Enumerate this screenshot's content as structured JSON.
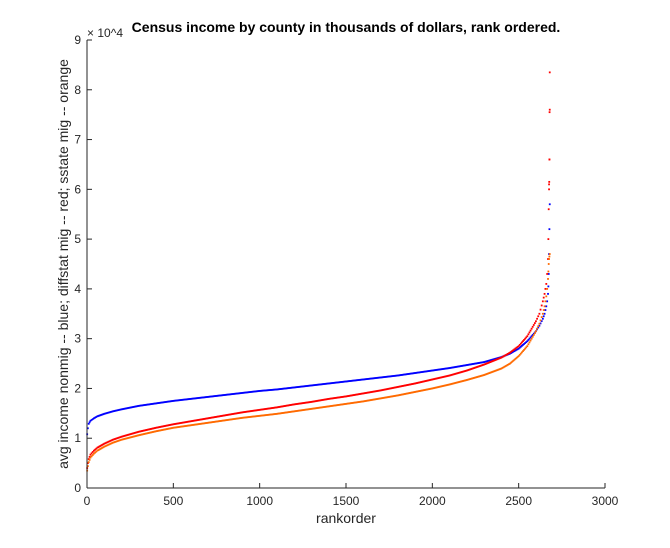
{
  "chart_data": {
    "type": "scatter",
    "title": "Census income by county in thousands of dollars, rank ordered.",
    "xlabel": "rankorder",
    "ylabel": "avg income nonmig -- blue; diffstat mig -- red; sstate mig -- orange",
    "xlim": [
      0,
      3000
    ],
    "ylim": [
      0,
      90000
    ],
    "y_exponent_label": "× 10^4",
    "x_ticks": [
      0,
      500,
      1000,
      1500,
      2000,
      2500,
      3000
    ],
    "x_tick_labels": [
      "0",
      "500",
      "1000",
      "1500",
      "2000",
      "2500",
      "3000"
    ],
    "y_ticks": [
      0,
      10000,
      20000,
      30000,
      40000,
      50000,
      60000,
      70000,
      80000,
      90000
    ],
    "y_tick_labels": [
      "0",
      "1",
      "2",
      "3",
      "4",
      "5",
      "6",
      "7",
      "8",
      "9"
    ],
    "grid": false,
    "series": [
      {
        "color": "#0000ff",
        "x": [
          1,
          5,
          10,
          20,
          40,
          60,
          100,
          150,
          200,
          300,
          400,
          500,
          600,
          700,
          800,
          900,
          1000,
          1100,
          1200,
          1300,
          1400,
          1500,
          1600,
          1700,
          1800,
          1900,
          2000,
          2100,
          2200,
          2300,
          2400,
          2450,
          2500,
          2550,
          2600,
          2620,
          2640,
          2650,
          2660,
          2665,
          2670,
          2672,
          2674,
          2676,
          2678,
          2680
        ],
        "y": [
          10800,
          12000,
          12900,
          13500,
          14000,
          14400,
          14900,
          15400,
          15800,
          16500,
          17000,
          17500,
          17900,
          18300,
          18700,
          19100,
          19500,
          19800,
          20200,
          20600,
          21000,
          21400,
          21800,
          22200,
          22600,
          23100,
          23600,
          24100,
          24700,
          25300,
          26300,
          27000,
          28000,
          29500,
          31500,
          32600,
          34000,
          35000,
          36500,
          37500,
          39000,
          40500,
          43000,
          47000,
          52000,
          57000
        ]
      },
      {
        "color": "#ff0000",
        "x": [
          1,
          5,
          10,
          20,
          40,
          60,
          100,
          150,
          200,
          300,
          400,
          500,
          600,
          700,
          800,
          900,
          1000,
          1100,
          1200,
          1300,
          1400,
          1500,
          1600,
          1700,
          1800,
          1900,
          2000,
          2100,
          2200,
          2300,
          2400,
          2450,
          2500,
          2550,
          2600,
          2620,
          2640,
          2650,
          2660,
          2665,
          2670,
          2672,
          2674,
          2676,
          2678,
          2680
        ],
        "y": [
          4000,
          5000,
          5800,
          6700,
          7500,
          8100,
          8900,
          9700,
          10300,
          11300,
          12100,
          12800,
          13400,
          14000,
          14600,
          15200,
          15700,
          16200,
          16800,
          17300,
          17900,
          18400,
          19000,
          19600,
          20300,
          21000,
          21800,
          22600,
          23600,
          24800,
          26200,
          27200,
          28500,
          30500,
          33500,
          35000,
          37500,
          39000,
          41000,
          43000,
          46000,
          50000,
          56000,
          61000,
          66000,
          76000
        ]
      },
      {
        "color": "#ff6a00",
        "x": [
          1,
          5,
          10,
          20,
          40,
          60,
          100,
          150,
          200,
          300,
          400,
          500,
          600,
          700,
          800,
          900,
          1000,
          1100,
          1200,
          1300,
          1400,
          1500,
          1600,
          1700,
          1800,
          1900,
          2000,
          2100,
          2200,
          2300,
          2400,
          2450,
          2500,
          2550,
          2600,
          2620,
          2640,
          2650,
          2660,
          2665,
          2670,
          2672,
          2674,
          2676,
          2678,
          2680
        ],
        "y": [
          3500,
          4400,
          5200,
          6100,
          6900,
          7500,
          8300,
          9100,
          9700,
          10600,
          11400,
          12100,
          12600,
          13100,
          13600,
          14100,
          14500,
          14900,
          15400,
          15900,
          16400,
          16900,
          17400,
          18000,
          18600,
          19300,
          20000,
          20800,
          21700,
          22700,
          24000,
          25000,
          26500,
          28500,
          31500,
          33000,
          35000,
          36500,
          38500,
          40000,
          42000,
          43500,
          45000,
          46000,
          46500,
          47000
        ]
      },
      {
        "color": "#ff0000",
        "x": [
          2676,
          2677,
          2678,
          2679,
          2680
        ],
        "y": [
          60000,
          61500,
          66000,
          75500,
          83500
        ]
      }
    ]
  }
}
